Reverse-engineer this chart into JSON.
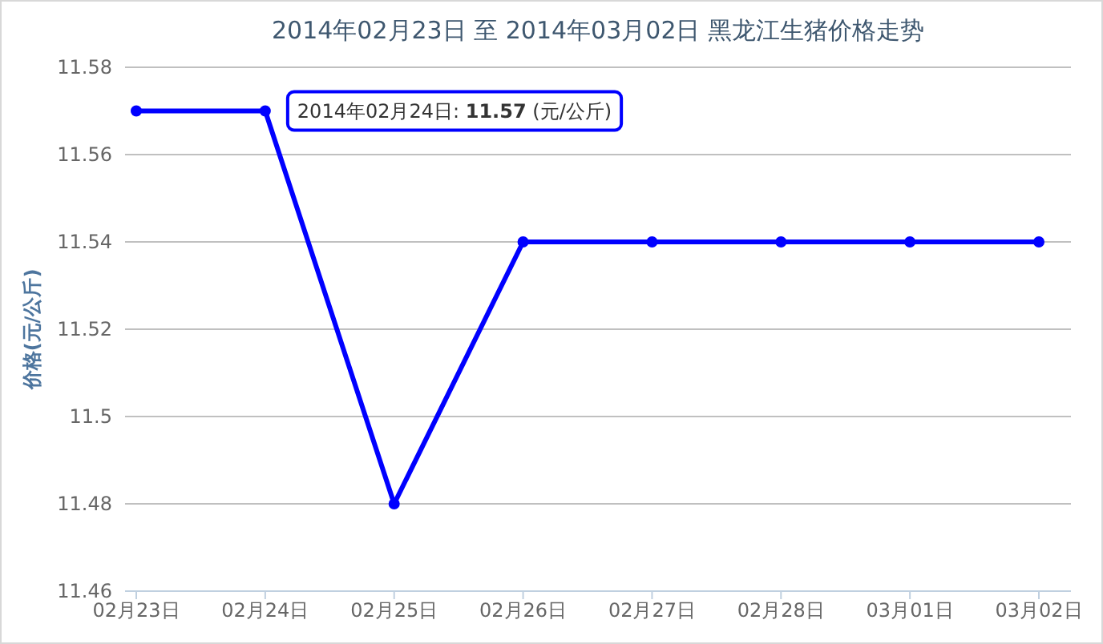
{
  "chart_data": {
    "type": "line",
    "title": "2014年02月23日 至 2014年03月02日 黑龙江生猪价格走势",
    "ylabel": "价格(元/公斤)",
    "categories": [
      "02月23日",
      "02月24日",
      "02月25日",
      "02月26日",
      "02月27日",
      "02月28日",
      "03月01日",
      "03月02日"
    ],
    "series": [
      {
        "color": "#0000ff",
        "values": [
          11.57,
          11.57,
          11.48,
          11.54,
          11.54,
          11.54,
          11.54,
          11.54
        ]
      }
    ],
    "ylim": [
      11.46,
      11.58
    ],
    "yticks": [
      11.46,
      11.48,
      11.5,
      11.52,
      11.54,
      11.56,
      11.58
    ],
    "grid": "y",
    "marker": "circle",
    "line_style": "solid",
    "annotations": [
      {
        "text": "2014年02月24日: **11.57** (元/公斤)",
        "x": "02月24日",
        "y": 11.57
      }
    ]
  }
}
